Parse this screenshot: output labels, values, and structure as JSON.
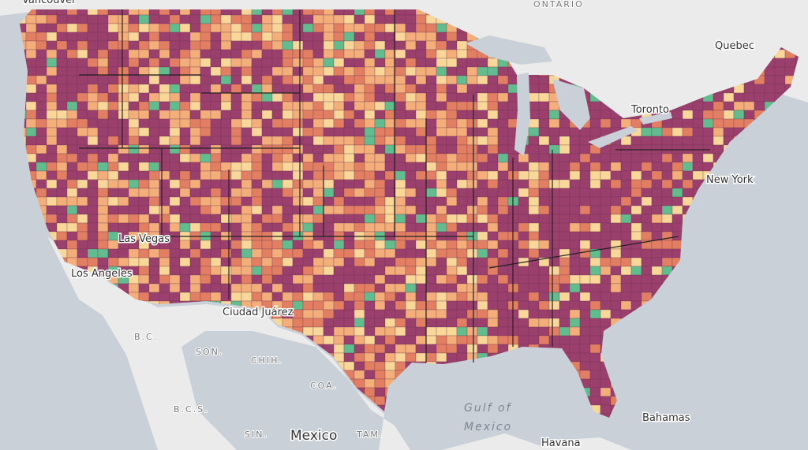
{
  "labels": {
    "vancouver": "Vancouver",
    "ontario": "ONTARIO",
    "quebec": "Quebec",
    "toronto": "Toronto",
    "new_york": "New York",
    "las_vegas": "Las Vegas",
    "los_angeles": "Los Angeles",
    "ciudad_juarez": "Ciudad Juárez",
    "bc": "B.C.",
    "son": "SON.",
    "chih": "CHIH.",
    "coa": "COA.",
    "bcs": "B.C.S.",
    "sin": "SIN.",
    "mexico": "Mexico",
    "tam": "TAM.",
    "gulf_line1": "Gulf of",
    "gulf_line2": "Mexico",
    "bahamas": "Bahamas",
    "havana": "Havana"
  }
}
